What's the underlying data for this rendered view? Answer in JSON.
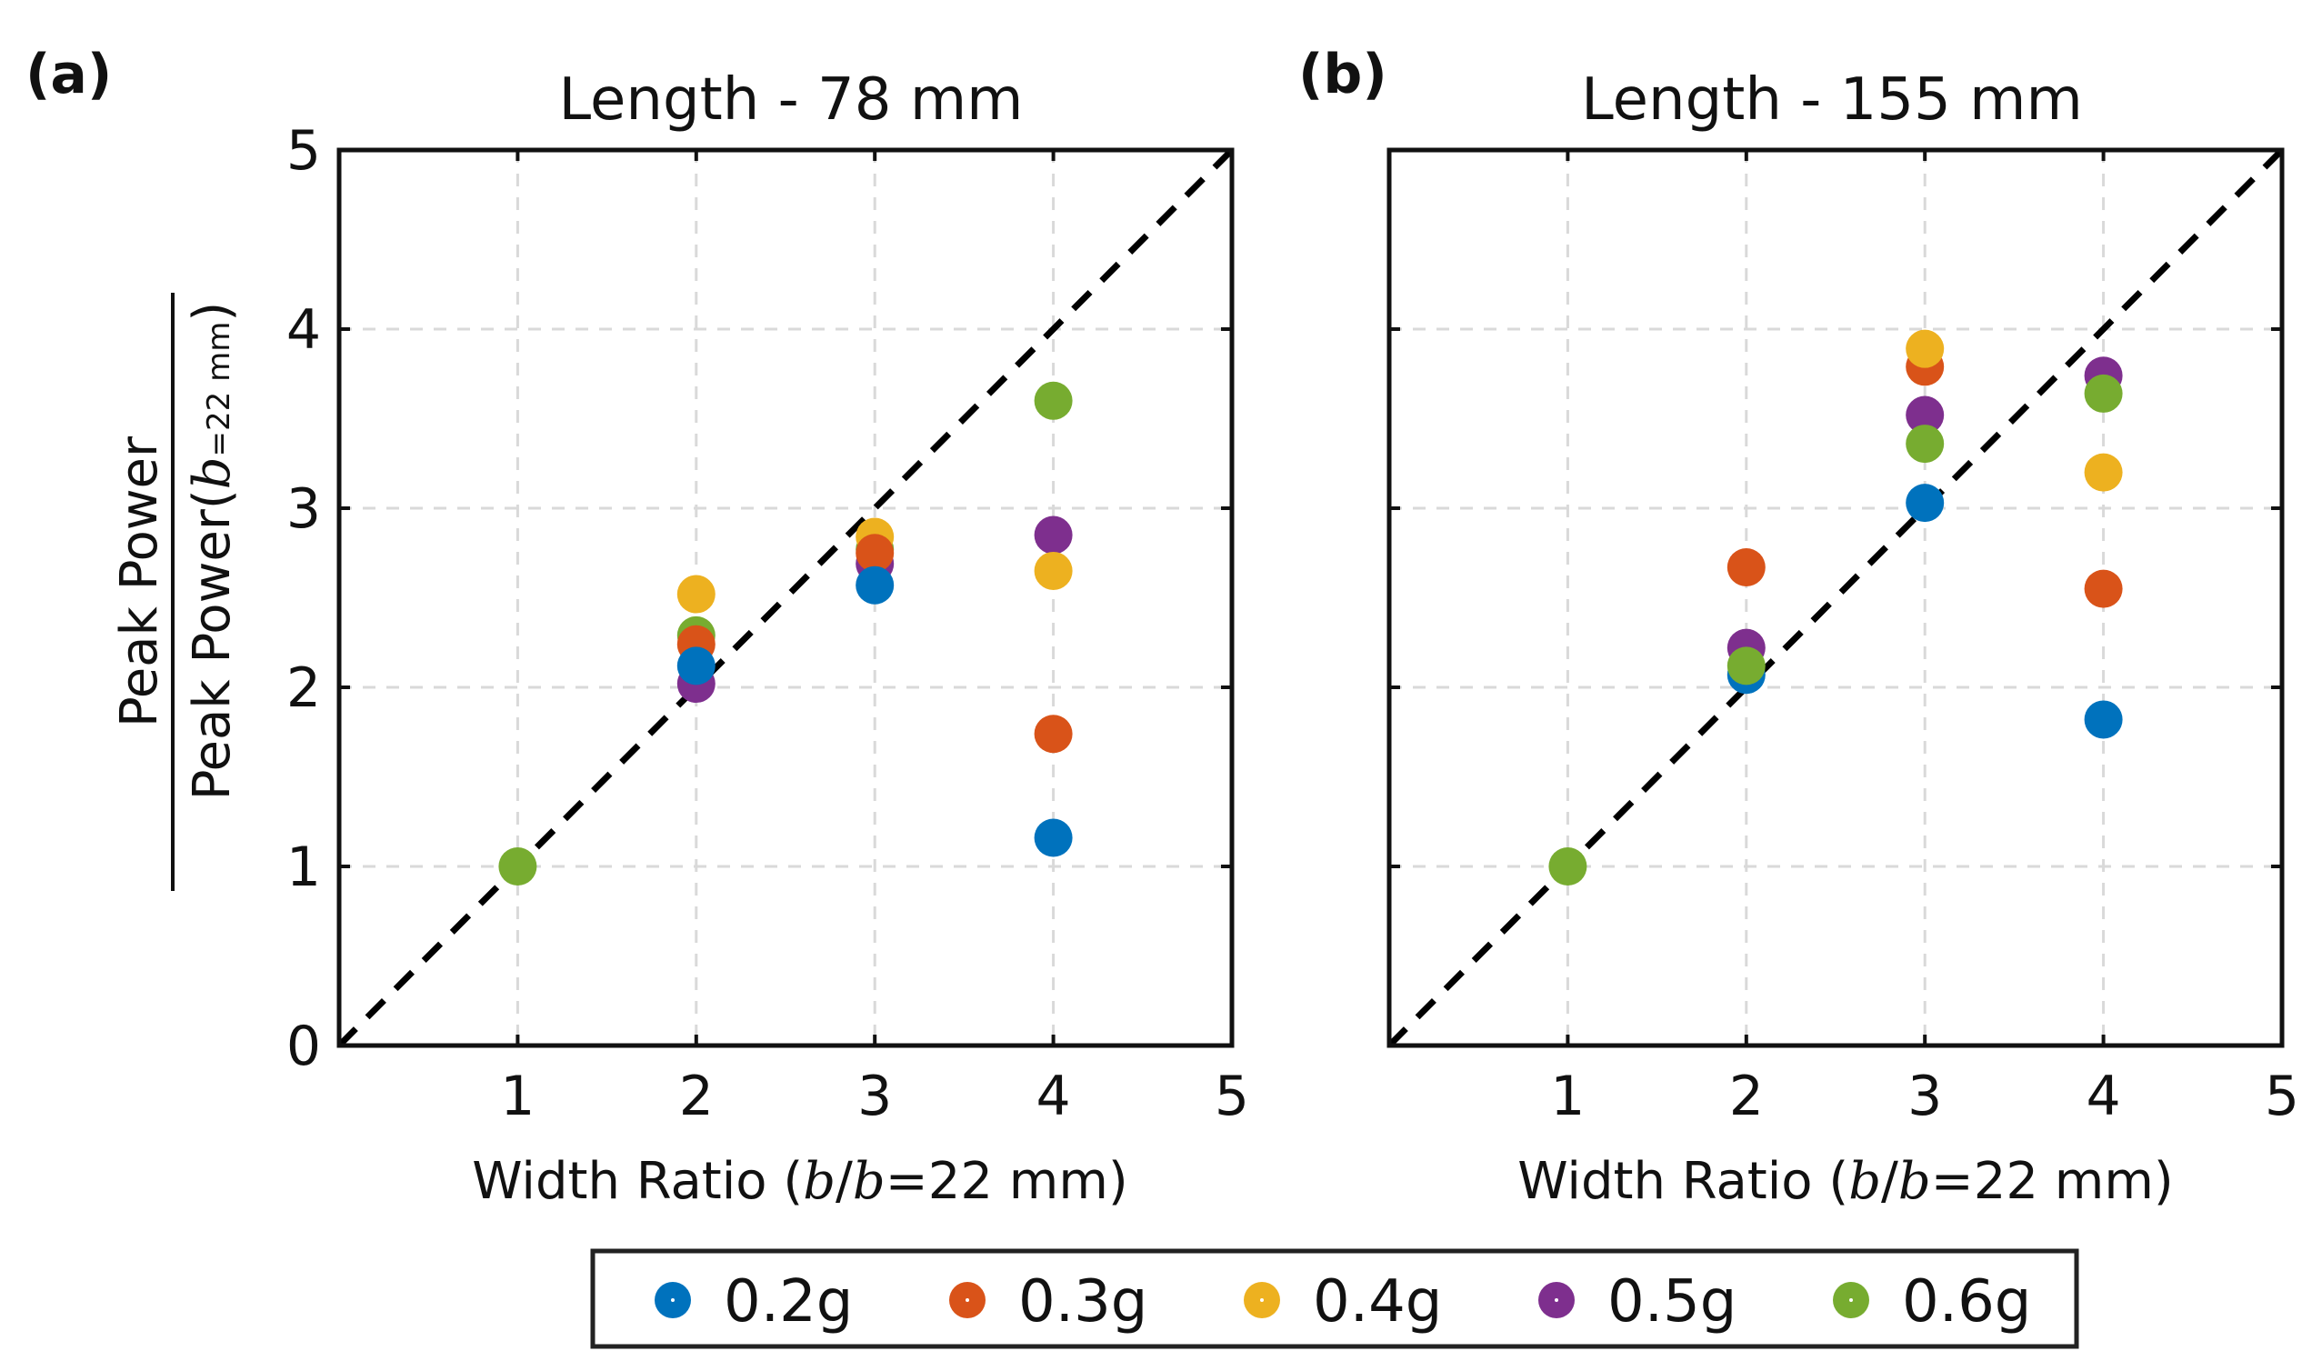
{
  "chart_data": [
    {
      "type": "scatter",
      "panel_label": "(a)",
      "title": "Length - 78 mm",
      "xlabel": {
        "prefix": "Width Ratio (",
        "var1": "b",
        "slash": "/",
        "var2": "b",
        "suffix": "=22 mm)"
      },
      "ylabel": {
        "numerator": "Peak Power",
        "denominator_prefix": "Peak Power",
        "paren_open": "(",
        "var": "b",
        "sub": "=22 mm",
        "paren_close": ")"
      },
      "xlim": [
        0,
        5
      ],
      "ylim": [
        0,
        5
      ],
      "xticks": [
        "1",
        "2",
        "3",
        "4",
        "5"
      ],
      "yticks": [
        "0",
        "1",
        "2",
        "3",
        "4",
        "5"
      ],
      "grid": true,
      "reference_line": {
        "style": "dashed",
        "from": [
          0,
          0
        ],
        "to": [
          5,
          5
        ]
      },
      "series": [
        {
          "name": "0.6g",
          "x": [
            1,
            2,
            3,
            4
          ],
          "y": [
            1.0,
            2.29,
            2.77,
            3.6
          ]
        },
        {
          "name": "0.5g",
          "x": [
            2,
            3,
            4
          ],
          "y": [
            2.02,
            2.69,
            2.85
          ]
        },
        {
          "name": "0.4g",
          "x": [
            2,
            3,
            4
          ],
          "y": [
            2.52,
            2.84,
            2.65
          ]
        },
        {
          "name": "0.3g",
          "x": [
            2,
            3,
            4
          ],
          "y": [
            2.24,
            2.75,
            1.74
          ]
        },
        {
          "name": "0.2g",
          "x": [
            2,
            3,
            4
          ],
          "y": [
            2.12,
            2.57,
            1.16
          ]
        }
      ]
    },
    {
      "type": "scatter",
      "panel_label": "(b)",
      "title": "Length - 155 mm",
      "xlabel": {
        "prefix": "Width Ratio (",
        "var1": "b",
        "slash": "/",
        "var2": "b",
        "suffix": "=22 mm)"
      },
      "xlim": [
        0,
        5
      ],
      "ylim": [
        0,
        5
      ],
      "xticks": [
        "1",
        "2",
        "3",
        "4",
        "5"
      ],
      "grid": true,
      "reference_line": {
        "style": "dashed",
        "from": [
          0,
          0
        ],
        "to": [
          5,
          5
        ]
      },
      "series": [
        {
          "name": "0.2g",
          "x": [
            2,
            3,
            4
          ],
          "y": [
            2.07,
            3.03,
            1.82
          ]
        },
        {
          "name": "0.3g",
          "x": [
            2,
            3,
            4
          ],
          "y": [
            2.67,
            3.79,
            2.55
          ]
        },
        {
          "name": "0.4g",
          "x": [
            3,
            4
          ],
          "y": [
            3.89,
            3.2
          ]
        },
        {
          "name": "0.5g",
          "x": [
            2,
            3,
            4
          ],
          "y": [
            2.22,
            3.52,
            3.74
          ]
        },
        {
          "name": "0.6g",
          "x": [
            1,
            2,
            3,
            4
          ],
          "y": [
            1.0,
            2.12,
            3.36,
            3.64
          ]
        }
      ]
    }
  ],
  "legend": {
    "position": "bottom-center",
    "items": [
      {
        "name": "0.2g",
        "color": "#0072BD"
      },
      {
        "name": "0.3g",
        "color": "#D95319"
      },
      {
        "name": "0.4g",
        "color": "#EDB120"
      },
      {
        "name": "0.5g",
        "color": "#7E2F8E"
      },
      {
        "name": "0.6g",
        "color": "#77AC30"
      }
    ]
  }
}
